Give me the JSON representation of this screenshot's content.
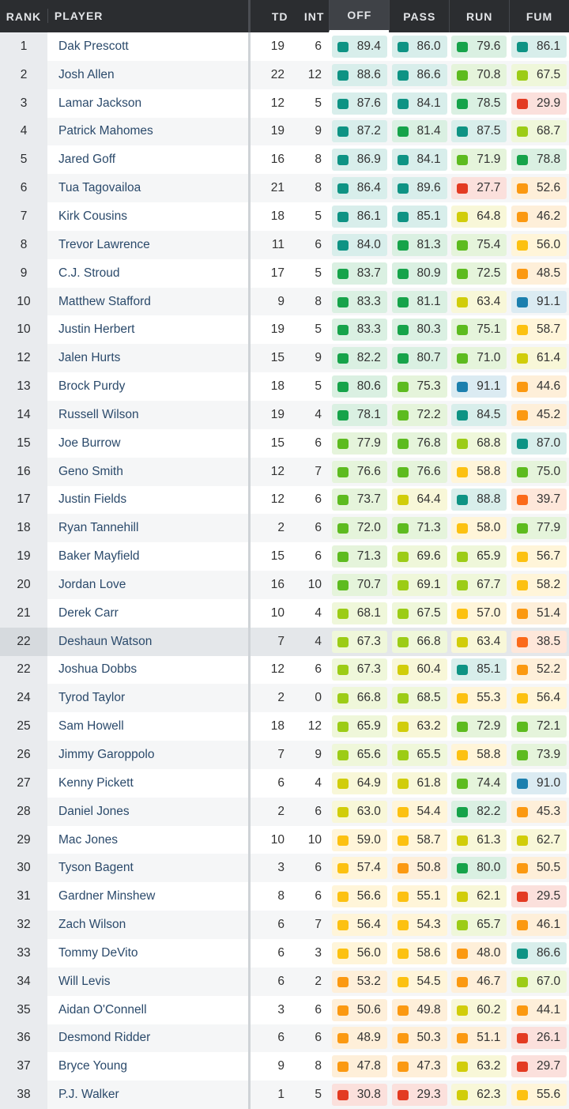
{
  "header": {
    "rank": "RANK",
    "player": "PLAYER",
    "td": "TD",
    "int": "INT",
    "off": "OFF",
    "pass": "PASS",
    "run": "RUN",
    "fum": "FUM"
  },
  "grade_colors": {
    "teal": "#0e9384",
    "green": "#16a34a",
    "lightgreen": "#5dbb1f",
    "yellowgreen": "#9ccc16",
    "yellow": "#d1cd0a",
    "gold": "#fcc111",
    "orange": "#fb9911",
    "darkorange": "#fb6a1a",
    "red": "#e33b22",
    "blue": "#1b7fae"
  },
  "highlighted_row": 21,
  "rows": [
    {
      "rank": "1",
      "player": "Dak Prescott",
      "td": "19",
      "int": "6",
      "off": "89.4",
      "pass": "86.0",
      "run": "79.6",
      "fum": "86.1"
    },
    {
      "rank": "2",
      "player": "Josh Allen",
      "td": "22",
      "int": "12",
      "off": "88.6",
      "pass": "86.6",
      "run": "70.8",
      "fum": "67.5"
    },
    {
      "rank": "3",
      "player": "Lamar Jackson",
      "td": "12",
      "int": "5",
      "off": "87.6",
      "pass": "84.1",
      "run": "78.5",
      "fum": "29.9"
    },
    {
      "rank": "4",
      "player": "Patrick Mahomes",
      "td": "19",
      "int": "9",
      "off": "87.2",
      "pass": "81.4",
      "run": "87.5",
      "fum": "68.7"
    },
    {
      "rank": "5",
      "player": "Jared Goff",
      "td": "16",
      "int": "8",
      "off": "86.9",
      "pass": "84.1",
      "run": "71.9",
      "fum": "78.8"
    },
    {
      "rank": "6",
      "player": "Tua Tagovailoa",
      "td": "21",
      "int": "8",
      "off": "86.4",
      "pass": "89.6",
      "run": "27.7",
      "fum": "52.6"
    },
    {
      "rank": "7",
      "player": "Kirk Cousins",
      "td": "18",
      "int": "5",
      "off": "86.1",
      "pass": "85.1",
      "run": "64.8",
      "fum": "46.2"
    },
    {
      "rank": "8",
      "player": "Trevor Lawrence",
      "td": "11",
      "int": "6",
      "off": "84.0",
      "pass": "81.3",
      "run": "75.4",
      "fum": "56.0"
    },
    {
      "rank": "9",
      "player": "C.J. Stroud",
      "td": "17",
      "int": "5",
      "off": "83.7",
      "pass": "80.9",
      "run": "72.5",
      "fum": "48.5"
    },
    {
      "rank": "10",
      "player": "Matthew Stafford",
      "td": "9",
      "int": "8",
      "off": "83.3",
      "pass": "81.1",
      "run": "63.4",
      "fum": "91.1"
    },
    {
      "rank": "10",
      "player": "Justin Herbert",
      "td": "19",
      "int": "5",
      "off": "83.3",
      "pass": "80.3",
      "run": "75.1",
      "fum": "58.7"
    },
    {
      "rank": "12",
      "player": "Jalen Hurts",
      "td": "15",
      "int": "9",
      "off": "82.2",
      "pass": "80.7",
      "run": "71.0",
      "fum": "61.4"
    },
    {
      "rank": "13",
      "player": "Brock Purdy",
      "td": "18",
      "int": "5",
      "off": "80.6",
      "pass": "75.3",
      "run": "91.1",
      "fum": "44.6"
    },
    {
      "rank": "14",
      "player": "Russell Wilson",
      "td": "19",
      "int": "4",
      "off": "78.1",
      "pass": "72.2",
      "run": "84.5",
      "fum": "45.2"
    },
    {
      "rank": "15",
      "player": "Joe Burrow",
      "td": "15",
      "int": "6",
      "off": "77.9",
      "pass": "76.8",
      "run": "68.8",
      "fum": "87.0"
    },
    {
      "rank": "16",
      "player": "Geno Smith",
      "td": "12",
      "int": "7",
      "off": "76.6",
      "pass": "76.6",
      "run": "58.8",
      "fum": "75.0"
    },
    {
      "rank": "17",
      "player": "Justin Fields",
      "td": "12",
      "int": "6",
      "off": "73.7",
      "pass": "64.4",
      "run": "88.8",
      "fum": "39.7"
    },
    {
      "rank": "18",
      "player": "Ryan Tannehill",
      "td": "2",
      "int": "6",
      "off": "72.0",
      "pass": "71.3",
      "run": "58.0",
      "fum": "77.9"
    },
    {
      "rank": "19",
      "player": "Baker Mayfield",
      "td": "15",
      "int": "6",
      "off": "71.3",
      "pass": "69.6",
      "run": "65.9",
      "fum": "56.7"
    },
    {
      "rank": "20",
      "player": "Jordan Love",
      "td": "16",
      "int": "10",
      "off": "70.7",
      "pass": "69.1",
      "run": "67.7",
      "fum": "58.2"
    },
    {
      "rank": "21",
      "player": "Derek Carr",
      "td": "10",
      "int": "4",
      "off": "68.1",
      "pass": "67.5",
      "run": "57.0",
      "fum": "51.4"
    },
    {
      "rank": "22",
      "player": "Deshaun Watson",
      "td": "7",
      "int": "4",
      "off": "67.3",
      "pass": "66.8",
      "run": "63.4",
      "fum": "38.5"
    },
    {
      "rank": "22",
      "player": "Joshua Dobbs",
      "td": "12",
      "int": "6",
      "off": "67.3",
      "pass": "60.4",
      "run": "85.1",
      "fum": "52.2"
    },
    {
      "rank": "24",
      "player": "Tyrod Taylor",
      "td": "2",
      "int": "0",
      "off": "66.8",
      "pass": "68.5",
      "run": "55.3",
      "fum": "56.4"
    },
    {
      "rank": "25",
      "player": "Sam Howell",
      "td": "18",
      "int": "12",
      "off": "65.9",
      "pass": "63.2",
      "run": "72.9",
      "fum": "72.1"
    },
    {
      "rank": "26",
      "player": "Jimmy Garoppolo",
      "td": "7",
      "int": "9",
      "off": "65.6",
      "pass": "65.5",
      "run": "58.8",
      "fum": "73.9"
    },
    {
      "rank": "27",
      "player": "Kenny Pickett",
      "td": "6",
      "int": "4",
      "off": "64.9",
      "pass": "61.8",
      "run": "74.4",
      "fum": "91.0"
    },
    {
      "rank": "28",
      "player": "Daniel Jones",
      "td": "2",
      "int": "6",
      "off": "63.0",
      "pass": "54.4",
      "run": "82.2",
      "fum": "45.3"
    },
    {
      "rank": "29",
      "player": "Mac Jones",
      "td": "10",
      "int": "10",
      "off": "59.0",
      "pass": "58.7",
      "run": "61.3",
      "fum": "62.7"
    },
    {
      "rank": "30",
      "player": "Tyson Bagent",
      "td": "3",
      "int": "6",
      "off": "57.4",
      "pass": "50.8",
      "run": "80.0",
      "fum": "50.5"
    },
    {
      "rank": "31",
      "player": "Gardner Minshew",
      "td": "8",
      "int": "6",
      "off": "56.6",
      "pass": "55.1",
      "run": "62.1",
      "fum": "29.5"
    },
    {
      "rank": "32",
      "player": "Zach Wilson",
      "td": "6",
      "int": "7",
      "off": "56.4",
      "pass": "54.3",
      "run": "65.7",
      "fum": "46.1"
    },
    {
      "rank": "33",
      "player": "Tommy DeVito",
      "td": "6",
      "int": "3",
      "off": "56.0",
      "pass": "58.6",
      "run": "48.0",
      "fum": "86.6"
    },
    {
      "rank": "34",
      "player": "Will Levis",
      "td": "6",
      "int": "2",
      "off": "53.2",
      "pass": "54.5",
      "run": "46.7",
      "fum": "67.0"
    },
    {
      "rank": "35",
      "player": "Aidan O'Connell",
      "td": "3",
      "int": "6",
      "off": "50.6",
      "pass": "49.8",
      "run": "60.2",
      "fum": "44.1"
    },
    {
      "rank": "36",
      "player": "Desmond Ridder",
      "td": "6",
      "int": "6",
      "off": "48.9",
      "pass": "50.3",
      "run": "51.1",
      "fum": "26.1"
    },
    {
      "rank": "37",
      "player": "Bryce Young",
      "td": "9",
      "int": "8",
      "off": "47.8",
      "pass": "47.3",
      "run": "63.2",
      "fum": "29.7"
    },
    {
      "rank": "38",
      "player": "P.J. Walker",
      "td": "1",
      "int": "5",
      "off": "30.8",
      "pass": "29.3",
      "run": "62.3",
      "fum": "55.6"
    }
  ]
}
